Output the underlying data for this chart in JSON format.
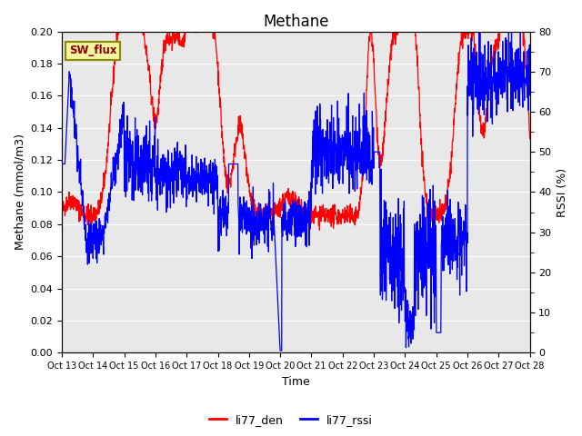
{
  "title": "Methane",
  "xlabel": "Time",
  "ylabel_left": "Methane (mmol/m3)",
  "ylabel_right": "RSSI (%)",
  "ylim_left": [
    0.0,
    0.2
  ],
  "ylim_right": [
    0,
    80
  ],
  "yticks_left": [
    0.0,
    0.02,
    0.04,
    0.06,
    0.08,
    0.1,
    0.12,
    0.14,
    0.16,
    0.18,
    0.2
  ],
  "yticks_right": [
    0,
    10,
    20,
    30,
    40,
    50,
    60,
    70,
    80
  ],
  "xtick_labels": [
    "Oct 13",
    "Oct 14",
    "Oct 15",
    "Oct 16",
    "Oct 17",
    "Oct 18",
    "Oct 19",
    "Oct 20",
    "Oct 21",
    "Oct 22",
    "Oct 23",
    "Oct 24",
    "Oct 25",
    "Oct 26",
    "Oct 27",
    "Oct 28"
  ],
  "color_den": "#FF0000",
  "color_rssi": "#0000FF",
  "legend_den": "li77_den",
  "legend_rssi": "li77_rssi",
  "sw_flux_label": "SW_flux",
  "plot_bg_color": "#E8E8E8",
  "grid_color": "#FFFFFF",
  "title_fontsize": 12,
  "axis_fontsize": 9,
  "tick_fontsize": 8,
  "linewidth": 0.9
}
